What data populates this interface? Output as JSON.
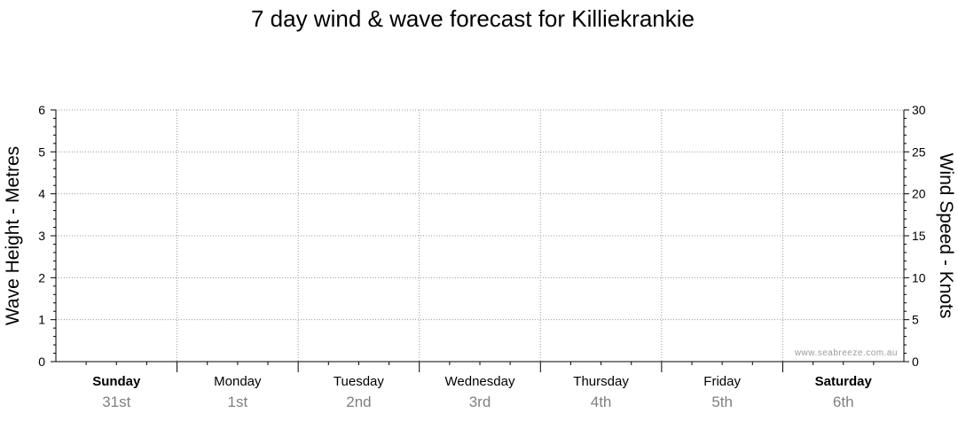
{
  "chart_data": {
    "type": "line",
    "title": "7 day wind & wave forecast for Killiekrankie",
    "ylabel": "Wave Height - Metres",
    "y2label": "Wind Speed - Knots",
    "ylim": [
      0,
      6
    ],
    "y2lim": [
      0,
      30
    ],
    "y_ticks": [
      "0",
      "1",
      "2",
      "3",
      "4",
      "5",
      "6"
    ],
    "y2_ticks": [
      "0",
      "5",
      "10",
      "15",
      "20",
      "25",
      "30"
    ],
    "days": [
      {
        "name": "Sunday",
        "date": "31st",
        "bold": true
      },
      {
        "name": "Monday",
        "date": "1st",
        "bold": false
      },
      {
        "name": "Tuesday",
        "date": "2nd",
        "bold": false
      },
      {
        "name": "Wednesday",
        "date": "3rd",
        "bold": false
      },
      {
        "name": "Thursday",
        "date": "4th",
        "bold": false
      },
      {
        "name": "Friday",
        "date": "5th",
        "bold": false
      },
      {
        "name": "Saturday",
        "date": "6th",
        "bold": true
      }
    ],
    "series": [],
    "grid": true,
    "watermark": "www.seabreeze.com.au"
  }
}
